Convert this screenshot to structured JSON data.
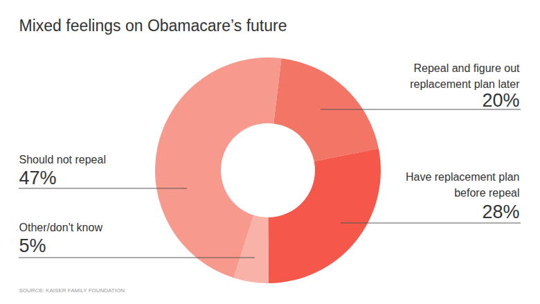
{
  "chart_data": {
    "type": "donut",
    "title": "Mixed feelings on Obamacare’s future",
    "categories": [
      "Repeal and figure out\nreplacement plan later",
      "Have replacement plan\nbefore repeal",
      "Other/don't know",
      "Should not repeal"
    ],
    "values": [
      20,
      28,
      5,
      47
    ],
    "value_labels": [
      "20%",
      "28%",
      "5%",
      "47%"
    ],
    "colors": [
      "#f37566",
      "#f5574a",
      "#f8b2a8",
      "#f7998c"
    ],
    "data_labels": true,
    "source": "SOURCE: KAISER FAMILY FOUNDATION"
  }
}
